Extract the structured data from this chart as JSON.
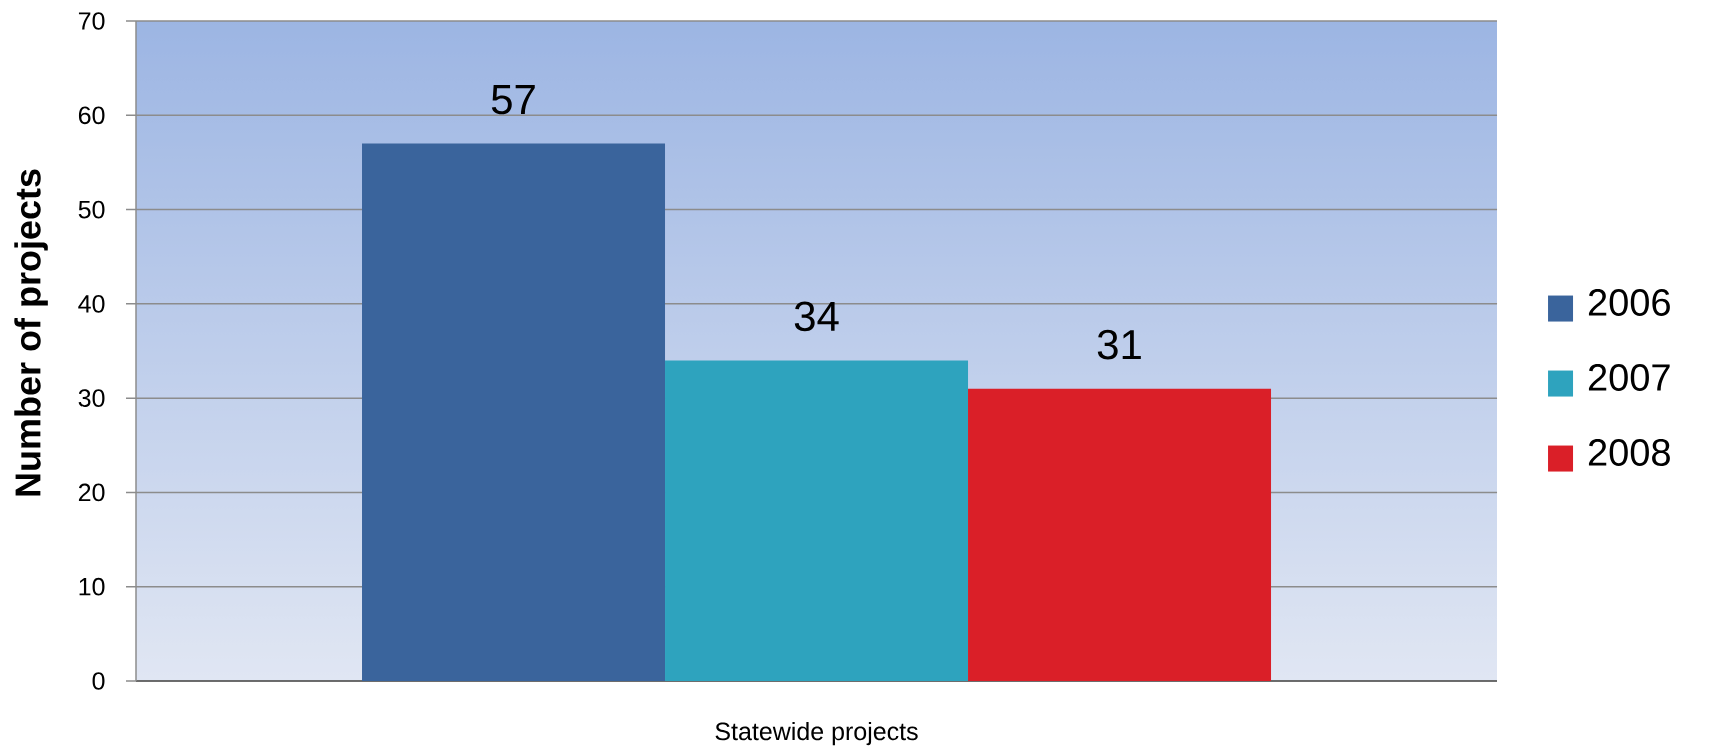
{
  "chart_data": {
    "type": "bar",
    "ylabel": "Number of projects",
    "categories": [
      "Statewide projects"
    ],
    "series": [
      {
        "name": "2006",
        "color": "#3a649c",
        "values": [
          57
        ]
      },
      {
        "name": "2007",
        "color": "#2ea3be",
        "values": [
          34
        ]
      },
      {
        "name": "2008",
        "color": "#da1f28",
        "values": [
          31
        ]
      }
    ],
    "ylim": [
      0,
      70
    ],
    "yticks": [
      0,
      10,
      20,
      30,
      40,
      50,
      60,
      70
    ],
    "grid": "y",
    "legend": "right",
    "data_labels": true
  }
}
